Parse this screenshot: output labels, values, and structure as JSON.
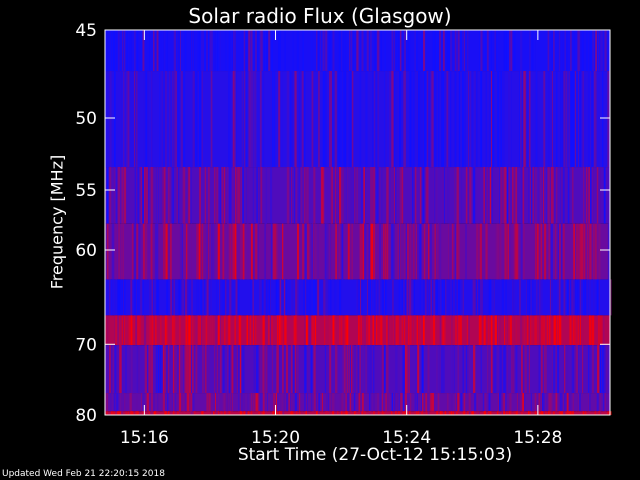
{
  "chart_data": {
    "type": "heatmap",
    "title": "Solar radio Flux (Glasgow)",
    "xlabel": "Start Time (27-Oct-12 15:15:03)",
    "ylabel": "Frequency [MHz]",
    "x_ticks": [
      "15:16",
      "15:20",
      "15:24",
      "15:28"
    ],
    "x_tick_minutes": [
      16,
      20,
      24,
      28
    ],
    "x_range_minutes": [
      14.8,
      30.2
    ],
    "y_ticks": [
      45,
      50,
      55,
      60,
      70,
      80
    ],
    "y_range_mhz": [
      45,
      80
    ],
    "y_scale": "reciprocal",
    "frequency_bands": [
      {
        "from_mhz": 45,
        "to_mhz": 47.2,
        "level": 0.05
      },
      {
        "from_mhz": 47.2,
        "to_mhz": 53.3,
        "level": 0.12
      },
      {
        "from_mhz": 53.3,
        "to_mhz": 57.7,
        "level": 0.35
      },
      {
        "from_mhz": 57.7,
        "to_mhz": 62.8,
        "level": 0.5
      },
      {
        "from_mhz": 62.8,
        "to_mhz": 66.6,
        "level": 0.1
      },
      {
        "from_mhz": 66.6,
        "to_mhz": 70.1,
        "level": 0.9
      },
      {
        "from_mhz": 70.1,
        "to_mhz": 76.6,
        "level": 0.35
      },
      {
        "from_mhz": 76.6,
        "to_mhz": 79.4,
        "level": 0.45
      },
      {
        "from_mhz": 79.4,
        "to_mhz": 80,
        "level": 0.95
      }
    ],
    "colors": {
      "low": "#1010ff",
      "high": "#ff0000",
      "axes": "#ffffff",
      "background": "#000000"
    },
    "grid": false
  },
  "footer": {
    "updated": "Updated Wed Feb 21 22:20:15 2018"
  }
}
